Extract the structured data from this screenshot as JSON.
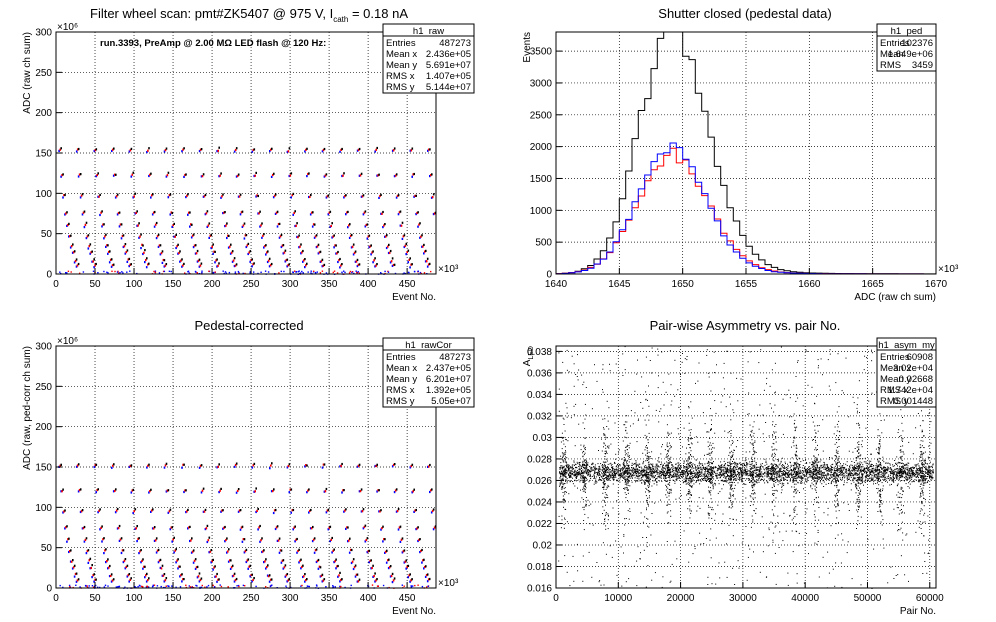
{
  "chart_data": [
    {
      "id": "raw",
      "type": "scatter",
      "title": "Filter wheel scan: pmt#ZK5407 @   975 V, I",
      "title_sub": "cath",
      "title_tail": " = 0.18 nA",
      "annotation": "run.3393, PreAmp @ 2.00 MΩ LED flash @  120 Hz:",
      "xlabel": "Event No.",
      "ylabel": "ADC (raw ch sum)",
      "x_multiplier": "×10³",
      "y_multiplier": "×10⁶",
      "xlim": [
        0,
        487
      ],
      "ylim": [
        0,
        300
      ],
      "x_ticks": [
        0,
        50,
        100,
        150,
        200,
        250,
        300,
        350,
        400,
        450
      ],
      "x_tick_labels": [
        "0",
        "50",
        "100",
        "150",
        "200",
        "250",
        "300",
        "350",
        "400",
        "450"
      ],
      "y_ticks": [
        0,
        50,
        100,
        150,
        200,
        250,
        300
      ],
      "y_tick_labels": [
        "0",
        "50",
        "100",
        "150",
        "200",
        "250",
        "300"
      ],
      "grid": true,
      "levels": [
        155,
        124,
        98,
        77,
        62,
        48,
        36,
        28,
        18,
        12
      ],
      "period": 22.5,
      "stats": {
        "name": "h1_raw",
        "rows": [
          [
            "Entries",
            "487273"
          ],
          [
            "Mean x",
            "2.436e+05"
          ],
          [
            "Mean y",
            "5.691e+07"
          ],
          [
            "RMS x",
            "1.407e+05"
          ],
          [
            "RMS y",
            "5.144e+07"
          ]
        ]
      }
    },
    {
      "id": "ped",
      "type": "histogram",
      "title": "Shutter closed (pedestal data)",
      "xlabel": "ADC (raw ch sum)",
      "ylabel": "Events",
      "x_multiplier": "×10³",
      "xlim": [
        1640,
        1670
      ],
      "ylim": [
        0,
        3800
      ],
      "x_ticks": [
        1640,
        1645,
        1650,
        1655,
        1660,
        1665,
        1670
      ],
      "x_tick_labels": [
        "1640",
        "1645",
        "1650",
        "1655",
        "1660",
        "1665",
        "1670"
      ],
      "y_ticks": [
        0,
        500,
        1000,
        1500,
        2000,
        2500,
        3000,
        3500
      ],
      "y_tick_labels": [
        "0",
        "500",
        "1000",
        "1500",
        "2000",
        "2500",
        "3000",
        "3500"
      ],
      "grid": true,
      "series": [
        {
          "name": "black",
          "color": "#000000",
          "peak": 3750,
          "mu": 1648.9,
          "sl": 2.4,
          "sr": 3.0
        },
        {
          "name": "red",
          "color": "#ff0000",
          "peak": 1830,
          "mu": 1649.0,
          "sl": 2.6,
          "sr": 2.9
        },
        {
          "name": "blue",
          "color": "#0000ff",
          "peak": 1950,
          "mu": 1648.9,
          "sl": 2.5,
          "sr": 2.8
        }
      ],
      "stats": {
        "name": "h1_ped",
        "rows": [
          [
            "Entries",
            "102376"
          ],
          [
            "Mean",
            "1.649e+06"
          ],
          [
            "RMS",
            "3459"
          ]
        ]
      }
    },
    {
      "id": "cor",
      "type": "scatter",
      "title": "Pedestal-corrected",
      "xlabel": "Event No.",
      "ylabel": "ADC (raw, ped-corr ch sum)",
      "x_multiplier": "×10³",
      "y_multiplier": "×10⁶",
      "xlim": [
        0,
        487
      ],
      "ylim": [
        0,
        300
      ],
      "x_ticks": [
        0,
        50,
        100,
        150,
        200,
        250,
        300,
        350,
        400,
        450
      ],
      "x_tick_labels": [
        "0",
        "50",
        "100",
        "150",
        "200",
        "250",
        "300",
        "350",
        "400",
        "450"
      ],
      "y_ticks": [
        0,
        50,
        100,
        150,
        200,
        250,
        300
      ],
      "y_tick_labels": [
        "0",
        "50",
        "100",
        "150",
        "200",
        "250",
        "300"
      ],
      "grid": true,
      "levels": [
        153,
        122,
        97,
        76,
        61,
        47,
        35,
        27,
        17,
        11
      ],
      "period": 22.5,
      "stats": {
        "name": "h1_rawCor",
        "rows": [
          [
            "Entries",
            "487273"
          ],
          [
            "Mean x",
            "2.437e+05"
          ],
          [
            "Mean y",
            "6.201e+07"
          ],
          [
            "RMS x",
            "1.392e+05"
          ],
          [
            "RMS y",
            "5.05e+07"
          ]
        ]
      }
    },
    {
      "id": "asym",
      "type": "scatter",
      "title": "Pair-wise Asymmetry vs. pair No.",
      "xlabel": "Pair No.",
      "ylabel": "A",
      "ylabel_sub": "LED",
      "xlim": [
        0,
        61000
      ],
      "ylim": [
        0.016,
        0.0385
      ],
      "x_ticks": [
        0,
        10000,
        20000,
        30000,
        40000,
        50000,
        60000
      ],
      "x_tick_labels": [
        "0",
        "10000",
        "20000",
        "30000",
        "40000",
        "50000",
        "60000"
      ],
      "y_ticks": [
        0.016,
        0.018,
        0.02,
        0.022,
        0.024,
        0.026,
        0.028,
        0.03,
        0.032,
        0.034,
        0.036,
        0.038
      ],
      "y_tick_labels": [
        "0.016",
        "0.018",
        "0.02",
        "0.022",
        "0.024",
        "0.026",
        "0.028",
        "0.03",
        "0.032",
        "0.034",
        "0.036",
        "0.038"
      ],
      "grid": true,
      "band_center": 0.0268,
      "band_halfwidth": 0.0006,
      "spike_positions": [
        1200,
        4500,
        7900,
        11200,
        14600,
        18000,
        21400,
        24800,
        28100,
        31500,
        34900,
        38300,
        41700,
        45100,
        48500,
        51900,
        55300,
        58700
      ],
      "stats": {
        "name": "h1_asym_my",
        "rows": [
          [
            "Entries",
            "60908"
          ],
          [
            "Mean x",
            "3.02e+04"
          ],
          [
            "Mean y",
            "0.02668"
          ],
          [
            "RMS x",
            "1.742e+04"
          ],
          [
            "RMS y",
            "0.001448"
          ]
        ]
      }
    }
  ]
}
